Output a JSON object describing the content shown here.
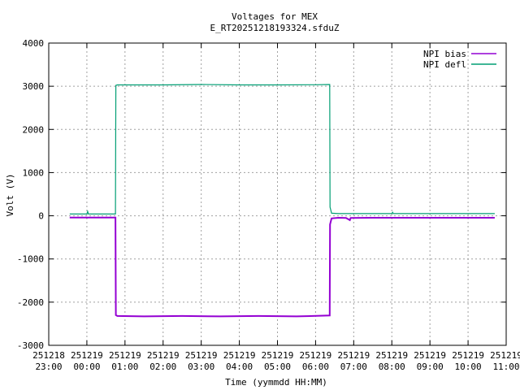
{
  "chart_data": {
    "type": "line",
    "title": "Voltages for MEX",
    "subtitle": "E_RT20251218193324.sfduZ",
    "xlabel": "Time (yymmdd HH:MM)",
    "ylabel": "Volt (V)",
    "ylim": [
      -3000,
      4000
    ],
    "xlim": [
      0,
      12
    ],
    "grid": true,
    "legend_position": "top-right",
    "y_ticks": [
      "-3000",
      "-2000",
      "-1000",
      "0",
      "1000",
      "2000",
      "3000",
      "4000"
    ],
    "x_ticks": [
      {
        "date": "251218",
        "time": "23:00"
      },
      {
        "date": "251219",
        "time": "00:00"
      },
      {
        "date": "251219",
        "time": "01:00"
      },
      {
        "date": "251219",
        "time": "02:00"
      },
      {
        "date": "251219",
        "time": "03:00"
      },
      {
        "date": "251219",
        "time": "04:00"
      },
      {
        "date": "251219",
        "time": "05:00"
      },
      {
        "date": "251219",
        "time": "06:00"
      },
      {
        "date": "251219",
        "time": "07:00"
      },
      {
        "date": "251219",
        "time": "08:00"
      },
      {
        "date": "251219",
        "time": "09:00"
      },
      {
        "date": "251219",
        "time": "10:00"
      },
      {
        "date": "251219",
        "time": "11:00"
      }
    ],
    "series": [
      {
        "name": "NPI bias",
        "color": "#9400d3",
        "points": [
          [
            0.55,
            -40
          ],
          [
            1.75,
            -40
          ],
          [
            1.76,
            -2300
          ],
          [
            1.8,
            -2320
          ],
          [
            2.5,
            -2330
          ],
          [
            3.5,
            -2320
          ],
          [
            4.5,
            -2330
          ],
          [
            5.5,
            -2320
          ],
          [
            6.5,
            -2330
          ],
          [
            7.37,
            -2310
          ],
          [
            7.38,
            -200
          ],
          [
            7.42,
            -60
          ],
          [
            7.6,
            -45
          ],
          [
            7.8,
            -50
          ],
          [
            7.9,
            -100
          ],
          [
            7.92,
            -50
          ],
          [
            8.5,
            -45
          ],
          [
            9.5,
            -45
          ],
          [
            10.5,
            -45
          ],
          [
            11.7,
            -45
          ]
        ]
      },
      {
        "name": "NPI defl",
        "color": "#009e73",
        "points": [
          [
            0.55,
            40
          ],
          [
            1.0,
            40
          ],
          [
            1.02,
            100
          ],
          [
            1.04,
            40
          ],
          [
            1.75,
            40
          ],
          [
            1.76,
            3020
          ],
          [
            1.8,
            3030
          ],
          [
            3.0,
            3030
          ],
          [
            4.0,
            3040
          ],
          [
            5.0,
            3030
          ],
          [
            6.0,
            3030
          ],
          [
            7.0,
            3035
          ],
          [
            7.37,
            3040
          ],
          [
            7.38,
            200
          ],
          [
            7.42,
            60
          ],
          [
            7.6,
            50
          ],
          [
            9.0,
            50
          ],
          [
            9.02,
            80
          ],
          [
            9.04,
            50
          ],
          [
            11.7,
            50
          ]
        ]
      }
    ]
  }
}
